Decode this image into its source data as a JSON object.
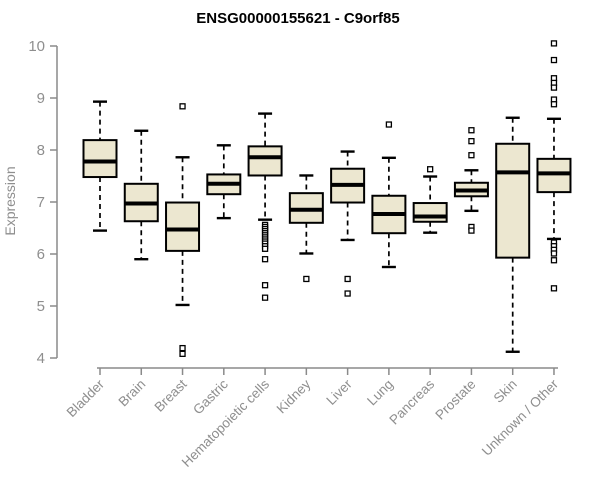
{
  "chart_data": {
    "type": "boxplot",
    "title": "ENSG00000155621 - C9orf85",
    "ylabel": "Expression",
    "xlabel": "",
    "ylim": [
      4,
      10
    ],
    "yticks": [
      4,
      5,
      6,
      7,
      8,
      9,
      10
    ],
    "grid": false,
    "legend": false,
    "categories": [
      "Bladder",
      "Brain",
      "Breast",
      "Gastric",
      "Hematopoietic cells",
      "Kidney",
      "Liver",
      "Lung",
      "Pancreas",
      "Prostate",
      "Skin",
      "Unknown / Other"
    ],
    "series": [
      {
        "category": "Bladder",
        "lo": 6.45,
        "q1": 7.48,
        "med": 7.78,
        "q3": 8.19,
        "hi": 8.93,
        "outliers": []
      },
      {
        "category": "Brain",
        "lo": 5.9,
        "q1": 6.63,
        "med": 6.97,
        "q3": 7.35,
        "hi": 8.37,
        "outliers": []
      },
      {
        "category": "Breast",
        "lo": 5.02,
        "q1": 6.06,
        "med": 6.47,
        "q3": 6.99,
        "hi": 7.86,
        "outliers": [
          8.84,
          4.19,
          4.08
        ]
      },
      {
        "category": "Gastric",
        "lo": 6.69,
        "q1": 7.15,
        "med": 7.35,
        "q3": 7.53,
        "hi": 8.09,
        "outliers": []
      },
      {
        "category": "Hematopoietic cells",
        "lo": 6.66,
        "q1": 7.51,
        "med": 7.86,
        "q3": 8.07,
        "hi": 8.7,
        "outliers": [
          6.56,
          6.52,
          6.48,
          6.44,
          6.4,
          6.36,
          6.32,
          6.28,
          6.24,
          6.2,
          6.15,
          6.1,
          5.9,
          5.4,
          5.16
        ]
      },
      {
        "category": "Kidney",
        "lo": 6.01,
        "q1": 6.6,
        "med": 6.85,
        "q3": 7.17,
        "hi": 7.51,
        "outliers": [
          5.52
        ]
      },
      {
        "category": "Liver",
        "lo": 6.27,
        "q1": 6.99,
        "med": 7.33,
        "q3": 7.64,
        "hi": 7.97,
        "outliers": [
          5.52,
          5.24
        ]
      },
      {
        "category": "Lung",
        "lo": 5.75,
        "q1": 6.4,
        "med": 6.77,
        "q3": 7.12,
        "hi": 7.85,
        "outliers": [
          8.49
        ]
      },
      {
        "category": "Pancreas",
        "lo": 6.41,
        "q1": 6.62,
        "med": 6.72,
        "q3": 6.98,
        "hi": 7.49,
        "outliers": [
          7.63
        ]
      },
      {
        "category": "Prostate",
        "lo": 6.83,
        "q1": 7.11,
        "med": 7.22,
        "q3": 7.37,
        "hi": 7.61,
        "outliers": [
          8.38,
          8.17,
          7.9,
          6.52,
          6.45
        ]
      },
      {
        "category": "Skin",
        "lo": 4.12,
        "q1": 5.93,
        "med": 7.57,
        "q3": 8.12,
        "hi": 8.62,
        "outliers": []
      },
      {
        "category": "Unknown / Other",
        "lo": 6.29,
        "q1": 7.19,
        "med": 7.55,
        "q3": 7.83,
        "hi": 8.6,
        "outliers": [
          10.05,
          9.73,
          9.38,
          9.29,
          9.2,
          8.97,
          8.88,
          6.22,
          6.15,
          6.08,
          6.01,
          5.88,
          5.34
        ]
      }
    ],
    "colors": {
      "box_fill": "#ece7d0",
      "box_stroke": "#000000",
      "median": "#000000",
      "whisker": "#000000",
      "outlier_fill": "#ffffff",
      "axis": "#8a8a8a",
      "tick_label": "#8e8e8e",
      "title": "#000000"
    }
  }
}
